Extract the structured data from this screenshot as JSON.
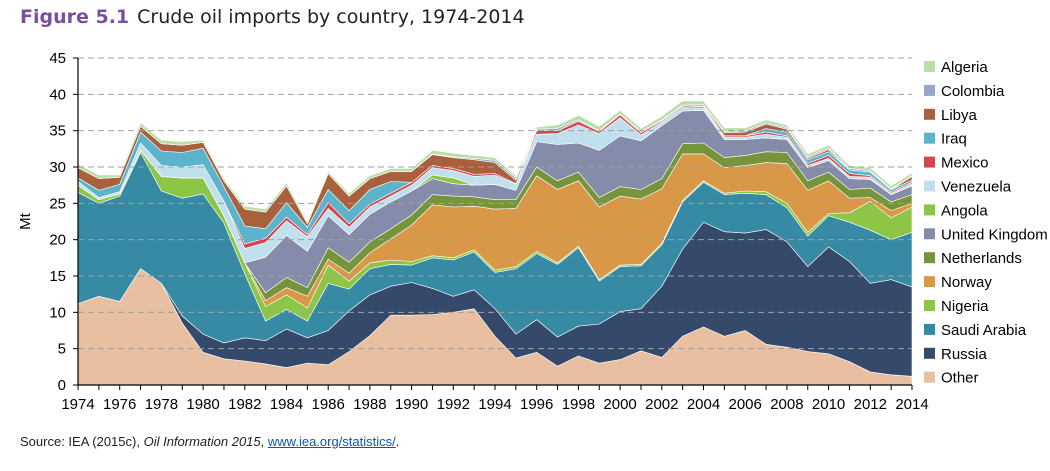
{
  "figure": {
    "number": "Figure 5.1",
    "title": "Crude oil imports by country, 1974-2014"
  },
  "source": {
    "prefix": "Source: IEA (2015c), ",
    "publication": "Oil Information 2015",
    "sep": ", ",
    "link": "www.iea.org/statistics/",
    "suffix": "."
  },
  "chart_data": {
    "type": "area",
    "stacked": true,
    "ylabel": "Mt",
    "ylim": [
      0,
      45
    ],
    "yticks": [
      0,
      5,
      10,
      15,
      20,
      25,
      30,
      35,
      40,
      45
    ],
    "xticks": [
      1974,
      1976,
      1978,
      1980,
      1982,
      1984,
      1986,
      1988,
      1990,
      1992,
      1994,
      1996,
      1998,
      2000,
      2002,
      2004,
      2006,
      2008,
      2010,
      2012,
      2014
    ],
    "grid": "dashed horizontal",
    "legend_position": "right",
    "x": [
      1974,
      1975,
      1976,
      1977,
      1978,
      1979,
      1980,
      1981,
      1982,
      1983,
      1984,
      1985,
      1986,
      1987,
      1988,
      1989,
      1990,
      1991,
      1992,
      1993,
      1994,
      1995,
      1996,
      1997,
      1998,
      1999,
      2000,
      2001,
      2002,
      2003,
      2004,
      2005,
      2006,
      2007,
      2008,
      2009,
      2010,
      2011,
      2012,
      2013,
      2014
    ],
    "series": [
      {
        "name": "Other",
        "color": "#e8bfa1",
        "values": [
          11.2,
          12.2,
          11.5,
          16.0,
          14.0,
          8.5,
          4.5,
          3.6,
          3.3,
          2.9,
          2.4,
          3.0,
          2.8,
          4.6,
          6.8,
          9.6,
          9.6,
          9.7,
          10.0,
          10.5,
          6.7,
          3.7,
          4.5,
          2.6,
          4.0,
          3.0,
          3.5,
          4.7,
          3.8,
          6.7,
          8.0,
          6.7,
          7.5,
          5.6,
          5.2,
          4.6,
          4.3,
          3.2,
          1.8,
          1.4,
          1.2
        ]
      },
      {
        "name": "Russia",
        "color": "#354a6b",
        "values": [
          0,
          0,
          0,
          0,
          0,
          1.0,
          2.5,
          2.2,
          3.2,
          3.2,
          5.3,
          3.5,
          4.7,
          5.6,
          5.6,
          4.0,
          4.5,
          3.6,
          2.2,
          2.6,
          3.8,
          3.3,
          4.5,
          4.0,
          4.1,
          5.4,
          6.6,
          5.8,
          9.8,
          12.0,
          14.4,
          14.4,
          13.4,
          15.8,
          14.5,
          11.7,
          14.7,
          13.8,
          12.2,
          13.1,
          12.3
        ]
      },
      {
        "name": "Saudi Arabia",
        "color": "#368aa3",
        "values": [
          15.3,
          12.8,
          14.5,
          16.0,
          12.7,
          16.2,
          19.3,
          16.5,
          8.8,
          2.7,
          2.7,
          2.3,
          6.5,
          3.0,
          3.6,
          3.0,
          2.4,
          4.2,
          5.0,
          5.2,
          5.0,
          9.0,
          9.1,
          10.0,
          10.8,
          5.9,
          6.2,
          5.9,
          5.7,
          6.5,
          5.5,
          5.1,
          5.5,
          4.8,
          4.7,
          4.2,
          4.3,
          5.4,
          7.3,
          5.5,
          7.5
        ]
      },
      {
        "name": "Nigeria",
        "color": "#8dc646",
        "values": [
          1.0,
          0.5,
          0.3,
          0.3,
          2.0,
          2.8,
          2.2,
          1.0,
          1.5,
          2.0,
          2.0,
          1.8,
          2.5,
          1.1,
          0.8,
          0.6,
          0.5,
          0.3,
          0.3,
          0.3,
          0.3,
          0.3,
          0.3,
          0.2,
          0.2,
          0.2,
          0.2,
          0.2,
          0.2,
          0.2,
          0.2,
          0.2,
          0.3,
          0.4,
          0.6,
          0.5,
          0.3,
          1.3,
          4.0,
          3.0,
          3.5
        ]
      },
      {
        "name": "Norway",
        "color": "#d99847",
        "values": [
          0,
          0,
          0,
          0,
          0,
          0,
          0,
          0,
          0,
          0.8,
          1.0,
          1.6,
          0.8,
          1.1,
          1.4,
          2.9,
          5.0,
          7.0,
          7.0,
          6.0,
          8.4,
          8.0,
          10.4,
          10.1,
          9.0,
          10.0,
          9.5,
          9.0,
          7.5,
          6.4,
          3.7,
          3.5,
          3.5,
          4.0,
          5.5,
          5.8,
          4.5,
          2.0,
          0.5,
          1.0,
          0.5
        ]
      },
      {
        "name": "Netherlands",
        "color": "#76943c",
        "values": [
          0,
          0,
          0,
          0,
          0,
          0,
          0,
          0,
          0,
          1.1,
          1.4,
          1.2,
          1.6,
          1.5,
          1.5,
          1.4,
          1.4,
          1.4,
          1.5,
          1.3,
          1.3,
          1.2,
          1.2,
          1.2,
          1.2,
          1.3,
          1.3,
          1.3,
          1.4,
          1.4,
          1.5,
          1.4,
          1.4,
          1.5,
          1.5,
          1.3,
          1.2,
          1.2,
          1.3,
          1.2,
          1.2
        ]
      },
      {
        "name": "United Kingdom",
        "color": "#848ca9",
        "values": [
          0,
          0,
          0,
          0,
          0,
          0,
          0,
          0,
          0,
          4.9,
          5.8,
          5.0,
          4.4,
          3.8,
          3.8,
          3.7,
          3.3,
          2.2,
          1.7,
          1.6,
          2.1,
          1.3,
          3.5,
          5.0,
          4.0,
          6.5,
          7.0,
          6.7,
          7.3,
          4.5,
          4.5,
          2.5,
          2.2,
          1.9,
          1.8,
          1.8,
          1.6,
          1.5,
          1.2,
          1.0,
          1.2
        ]
      },
      {
        "name": "Angola",
        "color": "#8dc646",
        "values": [
          0,
          0,
          0,
          0,
          0,
          0,
          0,
          0,
          0,
          0,
          0,
          0,
          0,
          0,
          0,
          0,
          0,
          0.5,
          0.8,
          0,
          0,
          0,
          0,
          0,
          0,
          0,
          0,
          0,
          0,
          0,
          0,
          0,
          0,
          0,
          0,
          0,
          0,
          0,
          0,
          0,
          0
        ]
      },
      {
        "name": "Venezuela",
        "color": "#bfe0ec",
        "values": [
          0.5,
          0.3,
          0.3,
          1.0,
          1.5,
          1.5,
          1.8,
          2.0,
          2.0,
          2.0,
          2.0,
          2.0,
          1.0,
          1.0,
          1.0,
          0.8,
          0.8,
          1.0,
          1.0,
          1.2,
          1.3,
          0.8,
          1.0,
          1.5,
          2.5,
          2.3,
          2.5,
          0.8,
          0.5,
          0.5,
          0.3,
          0.3,
          0.3,
          0.5,
          0.3,
          0.3,
          0.3,
          0.3,
          0.3,
          0.2,
          0.3
        ]
      },
      {
        "name": "Mexico",
        "color": "#d6454d",
        "values": [
          0,
          0,
          0,
          0,
          0,
          0,
          0,
          0,
          0.6,
          0.6,
          0.5,
          0.3,
          0.8,
          0.5,
          0.4,
          0.4,
          0.4,
          0.3,
          0.3,
          0.3,
          0.2,
          0.1,
          0.5,
          0.4,
          0.5,
          0.3,
          0.4,
          0.3,
          0.2,
          0.2,
          0.2,
          0.2,
          0.2,
          0.3,
          0.2,
          0.3,
          0.4,
          0.4,
          0.2,
          0.2,
          0.2
        ]
      },
      {
        "name": "Iraq",
        "color": "#5bb3cc",
        "values": [
          0.5,
          1.0,
          1.0,
          1.5,
          2.0,
          2.0,
          2.3,
          2.0,
          2.5,
          1.3,
          2.0,
          1.0,
          1.8,
          1.8,
          2.0,
          1.6,
          0,
          0,
          0,
          0,
          0,
          0,
          0,
          0,
          0,
          0,
          0,
          0,
          0,
          0,
          0,
          0,
          0,
          0.5,
          0.5,
          0.5,
          0.5,
          0.5,
          0.5,
          0.3,
          0.3
        ]
      },
      {
        "name": "Libya",
        "color": "#a8603d",
        "values": [
          1.4,
          1.6,
          1.0,
          0.8,
          1.0,
          1.0,
          0.8,
          0.8,
          2.3,
          2.3,
          2.3,
          0.5,
          2.2,
          2.0,
          1.5,
          1.4,
          1.5,
          1.5,
          1.5,
          2.0,
          1.5,
          0.5,
          0,
          0,
          0,
          0,
          0,
          0,
          0,
          0,
          0.1,
          0.4,
          0.5,
          0.6,
          0.4,
          0.2,
          0.3,
          0,
          0,
          0,
          0.5
        ]
      },
      {
        "name": "Colombia",
        "color": "#97a6cc",
        "values": [
          0,
          0,
          0,
          0,
          0,
          0,
          0,
          0,
          0,
          0,
          0,
          0,
          0,
          0,
          0,
          0,
          0,
          0.1,
          0.1,
          0.2,
          0.3,
          0.3,
          0.2,
          0.3,
          0.2,
          0.1,
          0.1,
          0.2,
          0.1,
          0.1,
          0.2,
          0.2,
          0.2,
          0.2,
          0.2,
          0.2,
          0.2,
          0.2,
          0.2,
          0.1,
          0.1
        ]
      },
      {
        "name": "Algeria",
        "color": "#b9dfa5",
        "values": [
          0.5,
          0.5,
          0.3,
          0.5,
          0.5,
          0.5,
          0.3,
          0.3,
          0.4,
          0.4,
          0.4,
          0.3,
          0.3,
          0.4,
          0.4,
          0.4,
          0.4,
          0.5,
          0.5,
          0.4,
          0.4,
          0.3,
          0.3,
          0.5,
          0.6,
          0.6,
          0.5,
          0.4,
          0.5,
          0.6,
          0.5,
          0.5,
          0.4,
          0.4,
          0.4,
          0.4,
          0.4,
          0.4,
          0.4,
          0.4,
          0.4
        ]
      }
    ]
  }
}
